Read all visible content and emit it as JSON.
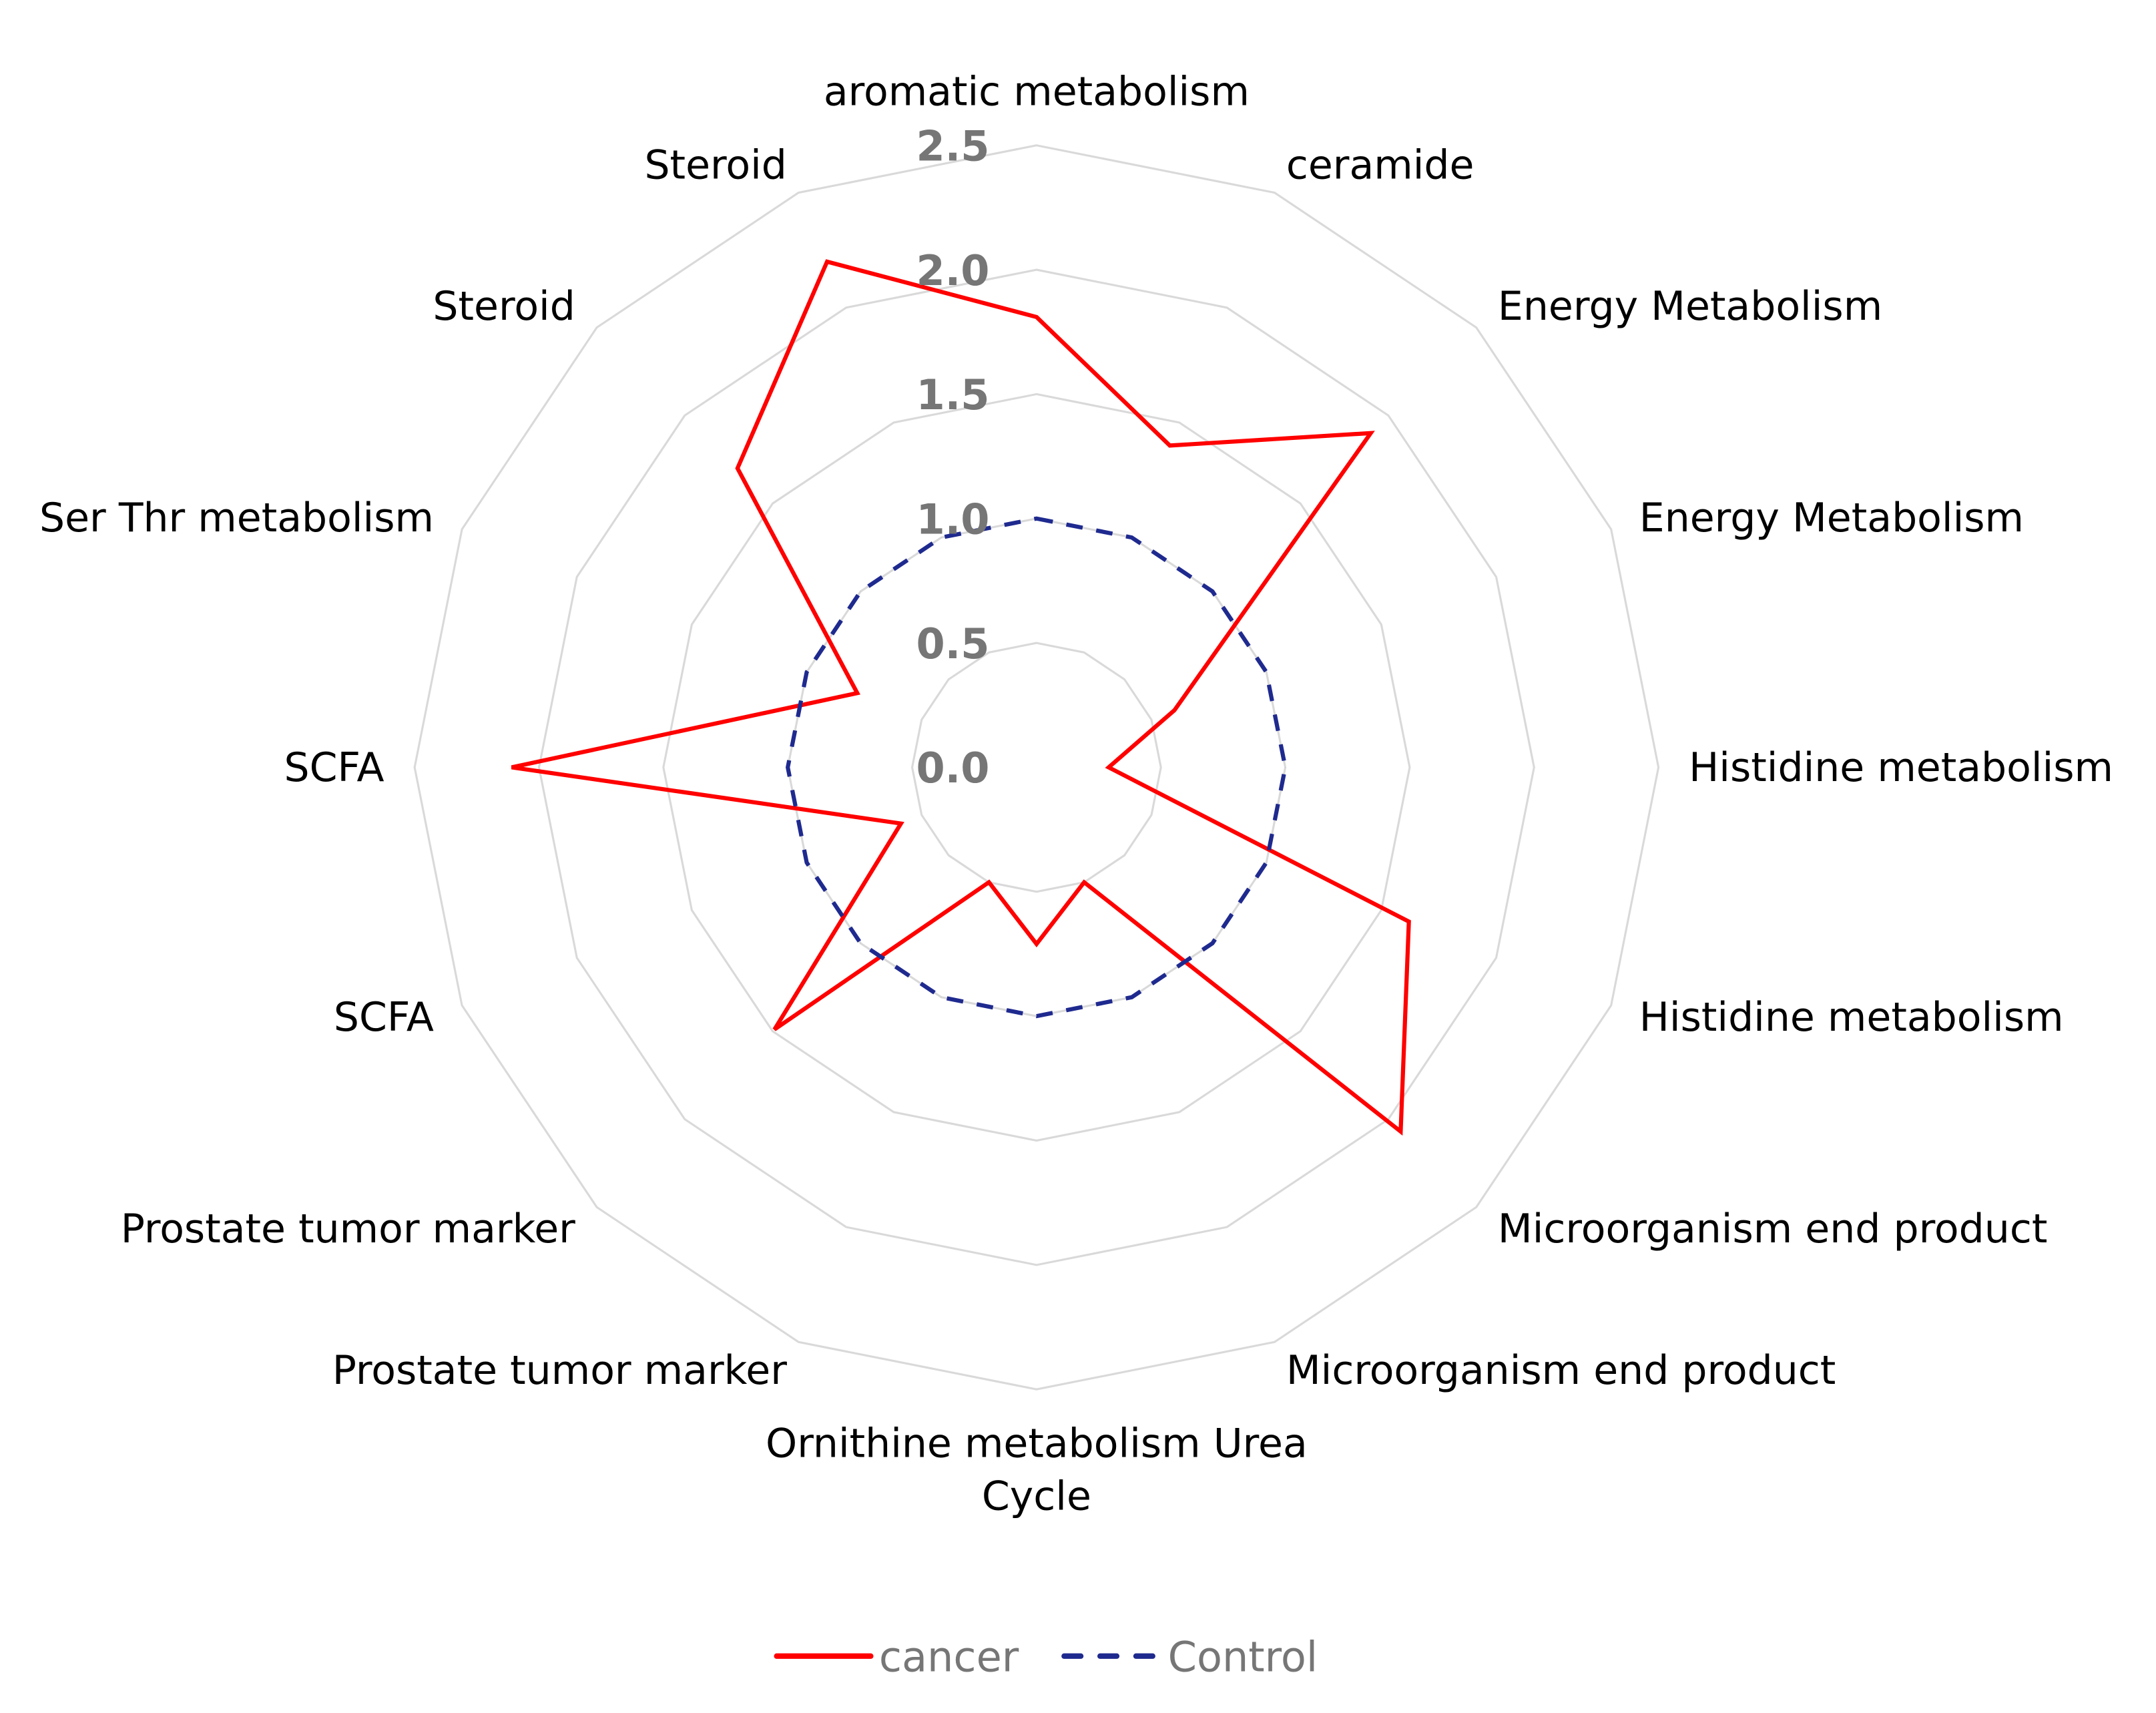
{
  "chart_data": {
    "type": "radar",
    "title": "",
    "categories": [
      "aromatic metabolism",
      "ceramide",
      "Energy Metabolism",
      "Energy Metabolism",
      "Histidine metabolism",
      "Histidine metabolism",
      "Microorganism end product",
      "Microorganism end product",
      "Ornithine metabolism Urea Cycle",
      "Prostate tumor marker",
      "Prostate tumor marker",
      "SCFA",
      "SCFA",
      "Ser Thr metabolism",
      "Steroid",
      "Steroid"
    ],
    "series": [
      {
        "name": "cancer",
        "color": "#ff0000",
        "style": "solid",
        "values": [
          1.81,
          1.4,
          1.9,
          0.6,
          0.29,
          1.62,
          2.07,
          0.5,
          0.71,
          0.5,
          1.49,
          0.59,
          2.11,
          0.78,
          1.7,
          2.2
        ]
      },
      {
        "name": "Control",
        "color": "#1f2a8f",
        "style": "dashed",
        "values": [
          1,
          1,
          1,
          1,
          1,
          1,
          1,
          1,
          1,
          1,
          1,
          1,
          1,
          1,
          1,
          1
        ]
      }
    ],
    "rlim": [
      0,
      2.5
    ],
    "ticks": [
      "0.0",
      "0.5",
      "1.0",
      "1.5",
      "2.0",
      "2.5"
    ],
    "grid": true,
    "grid_color": "#d9d9d9",
    "legend": "bottom"
  }
}
